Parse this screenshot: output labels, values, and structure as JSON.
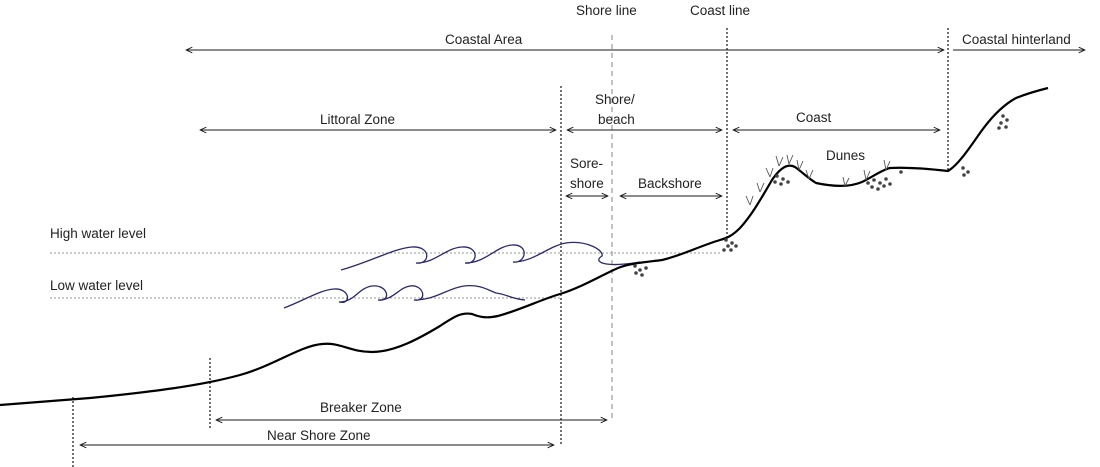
{
  "labels": {
    "shore_line": "Shore line",
    "coast_line": "Coast line",
    "coastal_area": "Coastal Area",
    "coastal_hinterland": "Coastal hinterland",
    "littoral_zone": "Littoral Zone",
    "shore_beach_1": "Shore/",
    "shore_beach_2": "beach",
    "coast": "Coast",
    "dunes": "Dunes",
    "sore_shore_1": "Sore-",
    "sore_shore_2": "shore",
    "backshore": "Backshore",
    "high_water_level": "High water level",
    "low_water_level": "Low water level",
    "breaker_zone": "Breaker Zone",
    "near_shore_zone": "Near Shore Zone"
  },
  "colors": {
    "wave": "#2a2a6e",
    "terrain": "#000000",
    "shore_line_dash": "#999999"
  }
}
